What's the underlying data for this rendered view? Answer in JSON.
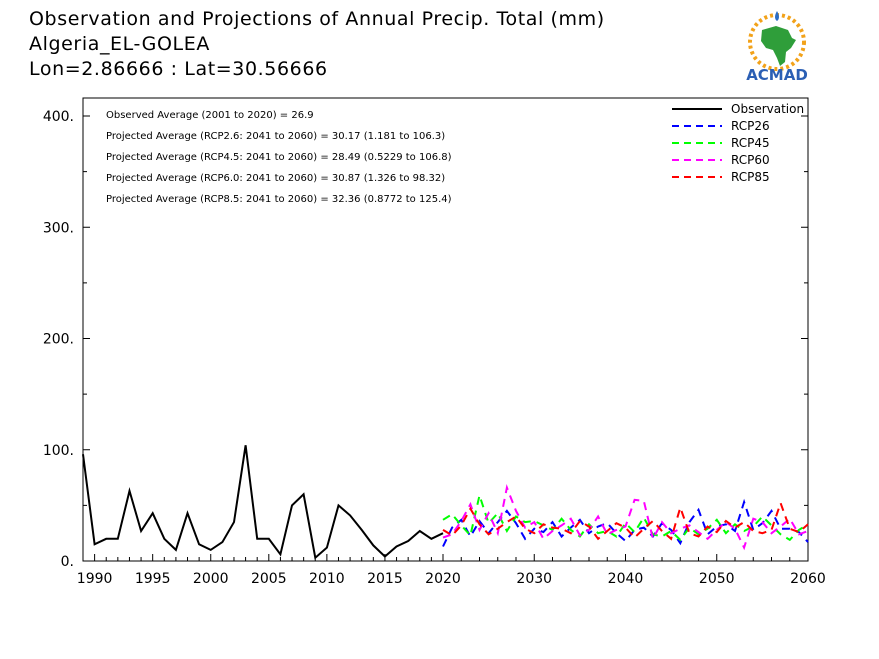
{
  "header": {
    "line1": "Observation and Projections of Annual Precip. Total (mm)",
    "line2": "Algeria_EL-GOLEA",
    "line3": "Lon=2.86666 : Lat=30.56666"
  },
  "logo": {
    "text": "ACMAD",
    "icon": "africa-map-sun-logo"
  },
  "annotations": [
    "Observed Average (2001 to 2020) = 26.9",
    "Projected Average (RCP2.6: 2041 to 2060) = 30.17 (1.181 to 106.3)",
    "Projected Average (RCP4.5: 2041 to 2060) = 28.49 (0.5229 to 106.8)",
    "Projected Average (RCP6.0: 2041 to 2060) = 30.87 (1.326 to 98.32)",
    "Projected Average (RCP8.5: 2041 to 2060) = 32.36 (0.8772 to 125.4)"
  ],
  "chart_data": {
    "type": "line",
    "ylim": [
      0,
      400
    ],
    "xlim": [
      1989,
      2060
    ],
    "yticks": [
      "0.",
      "100.",
      "200.",
      "300.",
      "400."
    ],
    "xticks_left": [
      "1990",
      "1995",
      "2000",
      "2005",
      "2010",
      "2015",
      "2020"
    ],
    "xticks_right": [
      "2030",
      "2040",
      "2050",
      "2060"
    ],
    "legend_position": "top-right",
    "series": [
      {
        "name": "Observation",
        "color": "#000000",
        "style": "solid",
        "x": [
          1989,
          1990,
          1991,
          1992,
          1993,
          1994,
          1995,
          1996,
          1997,
          1998,
          1999,
          2000,
          2001,
          2002,
          2003,
          2004,
          2005,
          2006,
          2007,
          2008,
          2009,
          2010,
          2011,
          2012,
          2013,
          2014,
          2015,
          2016,
          2017,
          2018,
          2019,
          2020
        ],
        "y": [
          96,
          15,
          20,
          20,
          63,
          27,
          43,
          20,
          10,
          43,
          15,
          10,
          17,
          35,
          104,
          20,
          20,
          6,
          50,
          60,
          3,
          12,
          50,
          41,
          28,
          14,
          4,
          13,
          18,
          27,
          20,
          25
        ]
      },
      {
        "name": "RCP26",
        "color": "#0000ff",
        "style": "dashed",
        "x": [
          2020,
          2021,
          2022,
          2023,
          2024,
          2025,
          2026,
          2027,
          2028,
          2029,
          2030,
          2031,
          2032,
          2033,
          2034,
          2035,
          2036,
          2037,
          2038,
          2039,
          2040,
          2041,
          2042,
          2043,
          2044,
          2045,
          2046,
          2047,
          2048,
          2049,
          2050,
          2051,
          2052,
          2053,
          2054,
          2055,
          2056,
          2057,
          2058,
          2059,
          2060
        ],
        "y": [
          13,
          30,
          37,
          22,
          36,
          25,
          35,
          45,
          34,
          20,
          29,
          26,
          35,
          22,
          30,
          37,
          25,
          31,
          34,
          25,
          18,
          28,
          30,
          22,
          34,
          28,
          16,
          35,
          46,
          24,
          31,
          33,
          27,
          53,
          28,
          34,
          45,
          29,
          29,
          26,
          17
        ]
      },
      {
        "name": "RCP45",
        "color": "#00ff00",
        "style": "dashed",
        "x": [
          2020,
          2021,
          2022,
          2023,
          2024,
          2025,
          2026,
          2027,
          2028,
          2029,
          2030,
          2031,
          2032,
          2033,
          2034,
          2035,
          2036,
          2037,
          2038,
          2039,
          2040,
          2041,
          2042,
          2043,
          2044,
          2045,
          2046,
          2047,
          2048,
          2049,
          2050,
          2051,
          2052,
          2053,
          2054,
          2055,
          2056,
          2057,
          2058,
          2059,
          2060
        ],
        "y": [
          37,
          42,
          32,
          23,
          59,
          34,
          43,
          27,
          40,
          35,
          36,
          32,
          28,
          38,
          28,
          22,
          33,
          25,
          27,
          22,
          34,
          26,
          39,
          24,
          22,
          27,
          19,
          30,
          24,
          29,
          37,
          25,
          33,
          27,
          31,
          40,
          32,
          24,
          19,
          28,
          33
        ]
      },
      {
        "name": "RCP60",
        "color": "#ff00ff",
        "style": "dashed",
        "x": [
          2020,
          2021,
          2022,
          2023,
          2024,
          2025,
          2026,
          2027,
          2028,
          2029,
          2030,
          2031,
          2032,
          2033,
          2034,
          2035,
          2036,
          2037,
          2038,
          2039,
          2040,
          2041,
          2042,
          2043,
          2044,
          2045,
          2046,
          2047,
          2048,
          2049,
          2050,
          2051,
          2052,
          2053,
          2054,
          2055,
          2056,
          2057,
          2058,
          2059,
          2060
        ],
        "y": [
          21,
          24,
          36,
          51,
          28,
          43,
          25,
          66,
          45,
          30,
          35,
          20,
          27,
          32,
          38,
          23,
          28,
          40,
          24,
          28,
          31,
          55,
          54,
          20,
          35,
          25,
          29,
          32,
          26,
          20,
          28,
          35,
          29,
          12,
          38,
          35,
          25,
          31,
          38,
          24,
          27
        ]
      },
      {
        "name": "RCP85",
        "color": "#ff0000",
        "style": "dashed",
        "x": [
          2020,
          2021,
          2022,
          2023,
          2024,
          2025,
          2026,
          2027,
          2028,
          2029,
          2030,
          2031,
          2032,
          2033,
          2034,
          2035,
          2036,
          2037,
          2038,
          2039,
          2040,
          2041,
          2042,
          2043,
          2044,
          2045,
          2046,
          2047,
          2048,
          2049,
          2050,
          2051,
          2052,
          2053,
          2054,
          2055,
          2056,
          2057,
          2058,
          2059,
          2060
        ],
        "y": [
          28,
          23,
          32,
          47,
          33,
          24,
          29,
          35,
          40,
          29,
          25,
          33,
          30,
          29,
          25,
          36,
          31,
          20,
          27,
          34,
          30,
          21,
          29,
          36,
          27,
          20,
          48,
          25,
          22,
          31,
          26,
          36,
          30,
          35,
          27,
          25,
          28,
          52,
          29,
          26,
          33
        ]
      }
    ]
  }
}
